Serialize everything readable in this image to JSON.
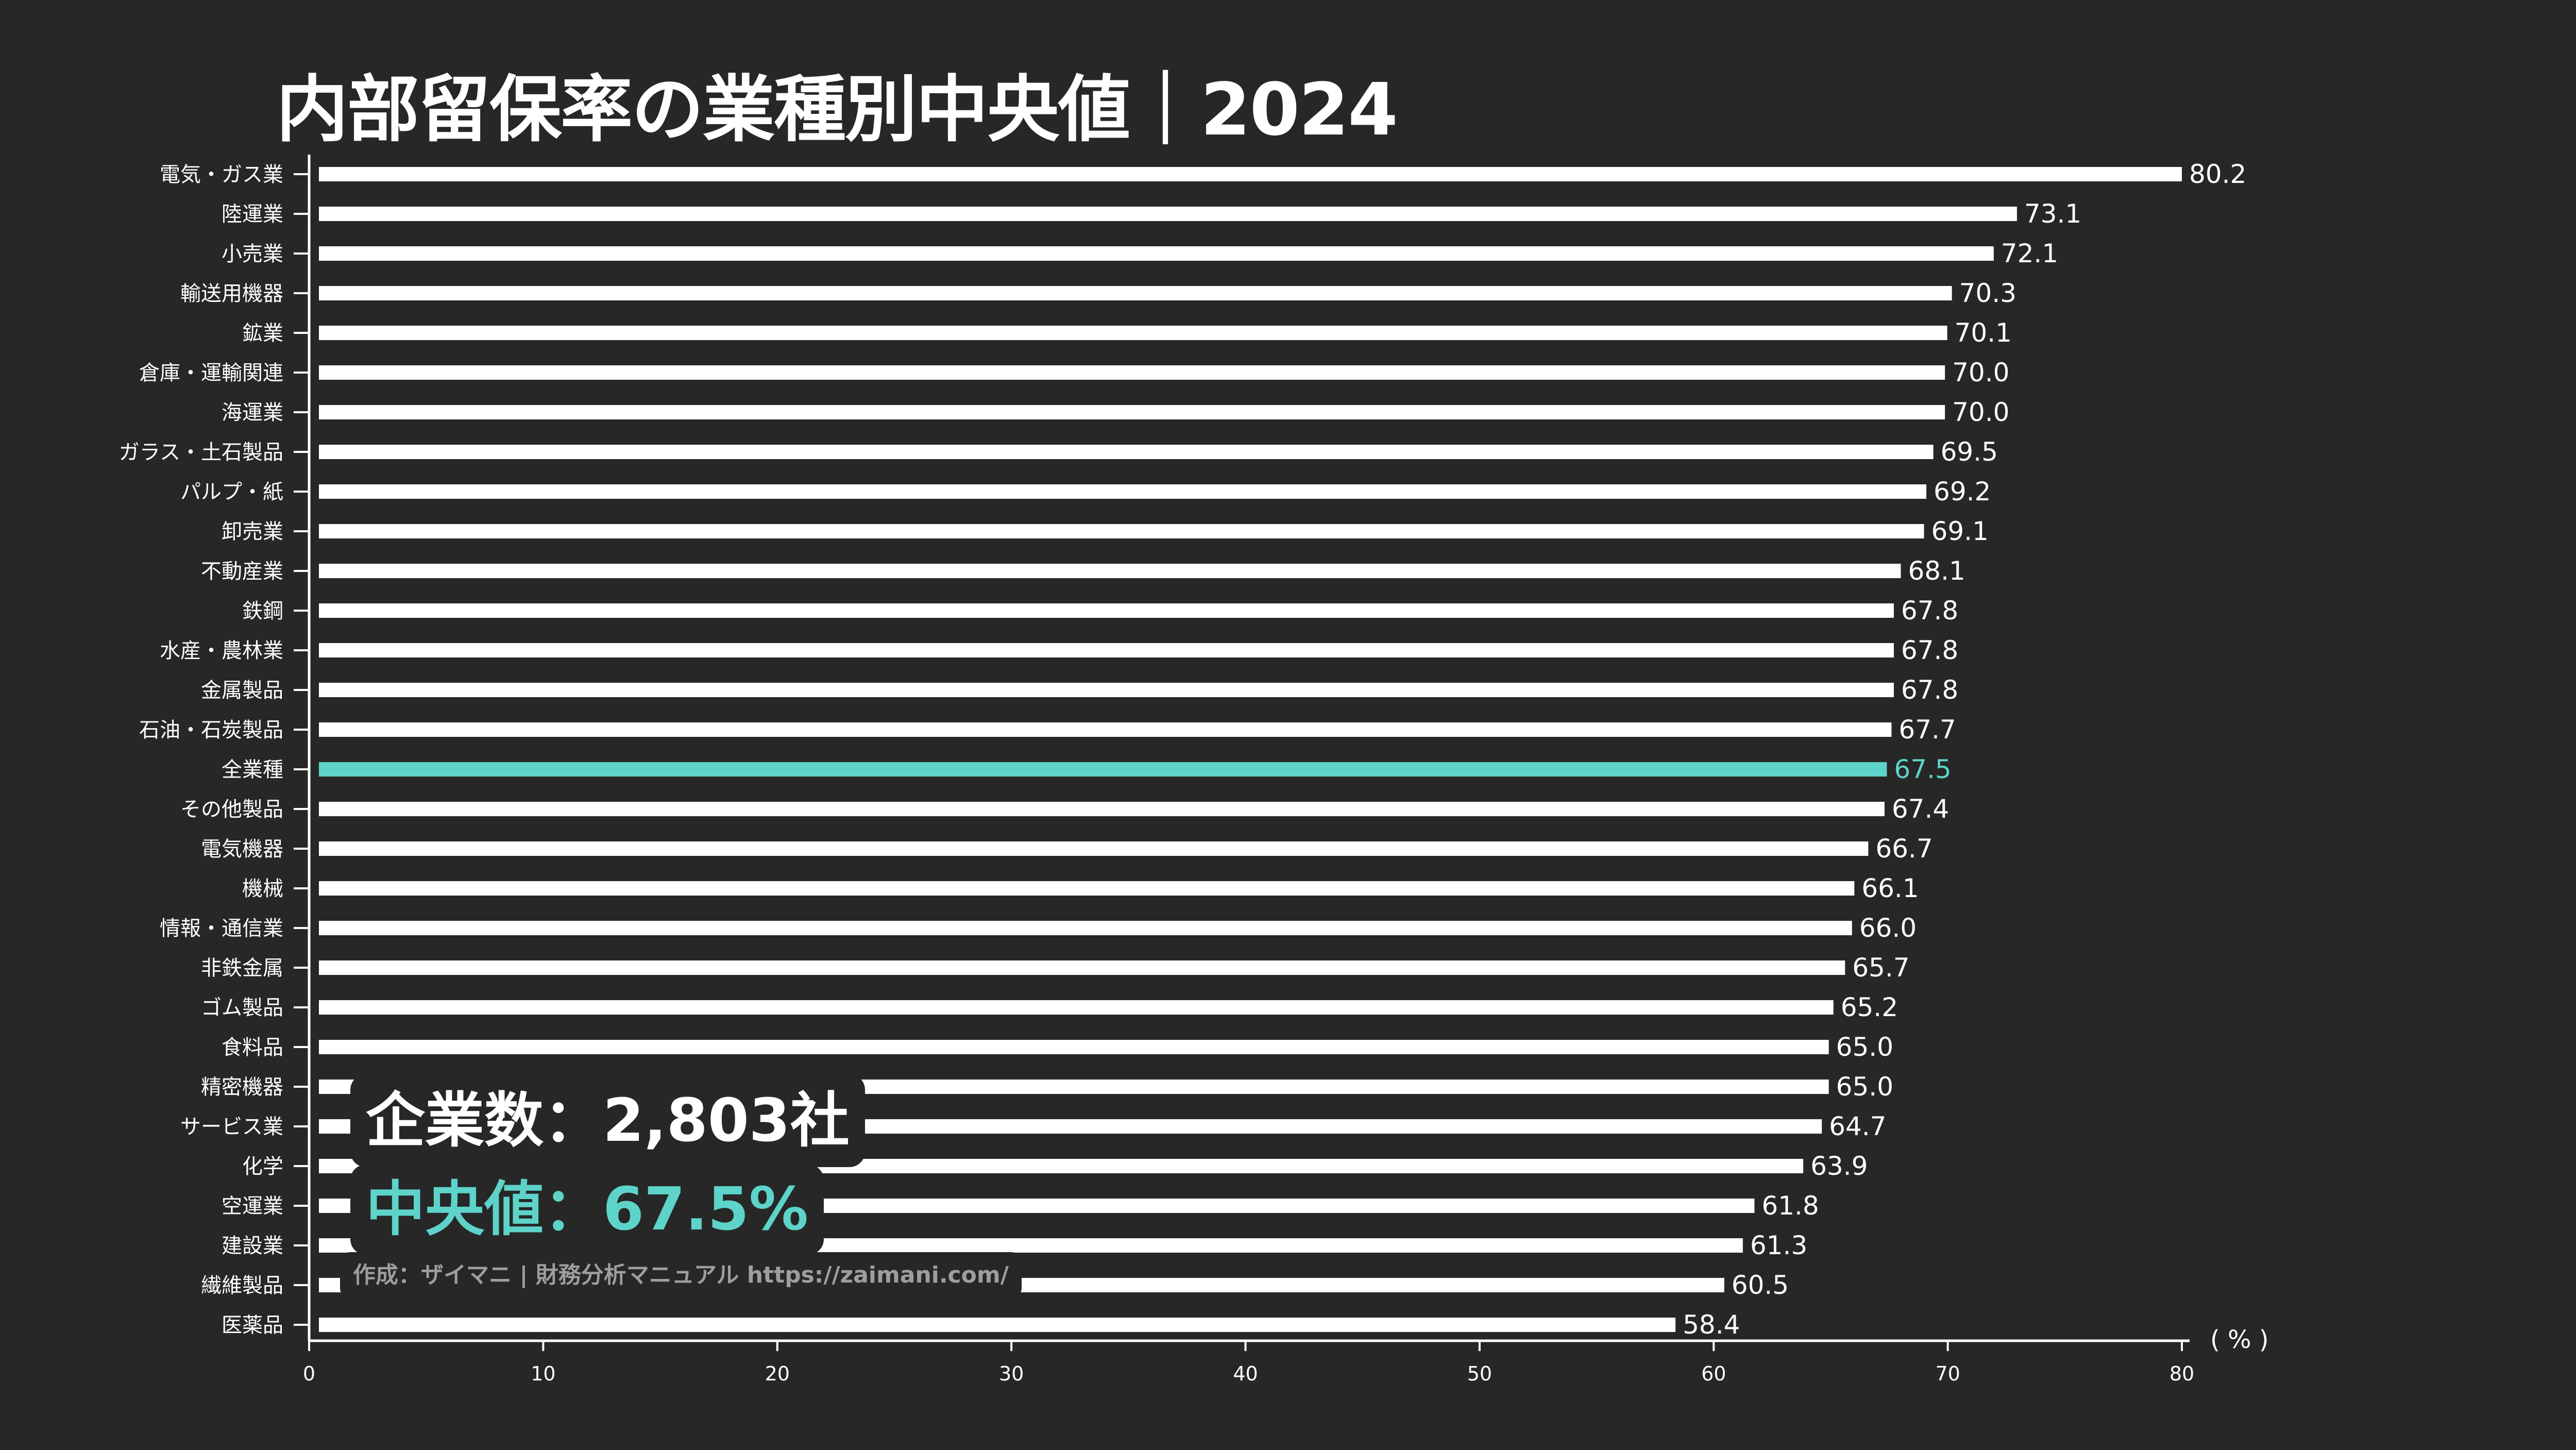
{
  "chart_data": {
    "type": "bar",
    "orientation": "horizontal",
    "title": "内部留保率の業種別中央値｜2024",
    "unit_label": "( % )",
    "xlim": [
      0,
      80
    ],
    "xticks": [
      0,
      10,
      20,
      30,
      40,
      50,
      60,
      70,
      80
    ],
    "grid": false,
    "categories": [
      "電気・ガス業",
      "陸運業",
      "小売業",
      "輸送用機器",
      "鉱業",
      "倉庫・運輸関連",
      "海運業",
      "ガラス・土石製品",
      "パルプ・紙",
      "卸売業",
      "不動産業",
      "鉄鋼",
      "水産・農林業",
      "金属製品",
      "石油・石炭製品",
      "全業種",
      "その他製品",
      "電気機器",
      "機械",
      "情報・通信業",
      "非鉄金属",
      "ゴム製品",
      "食料品",
      "精密機器",
      "サービス業",
      "化学",
      "空運業",
      "建設業",
      "繊維製品",
      "医薬品"
    ],
    "values": [
      80.2,
      73.1,
      72.1,
      70.3,
      70.1,
      70.0,
      70.0,
      69.5,
      69.2,
      69.1,
      68.1,
      67.8,
      67.8,
      67.8,
      67.7,
      67.5,
      67.4,
      66.7,
      66.1,
      66.0,
      65.7,
      65.2,
      65.0,
      65.0,
      64.7,
      63.9,
      61.8,
      61.3,
      60.5,
      58.4
    ],
    "highlight_category": "全業種",
    "colors": {
      "bar": "#ffffff",
      "highlight": "#5dd3c9",
      "background": "#272727",
      "credit": "#9e9e9e"
    }
  },
  "info": {
    "company_count": "企業数：2,803社",
    "median": "中央値：67.5%",
    "credit": "作成：ザイマニ | 財務分析マニュアル https://zaimani.com/"
  }
}
